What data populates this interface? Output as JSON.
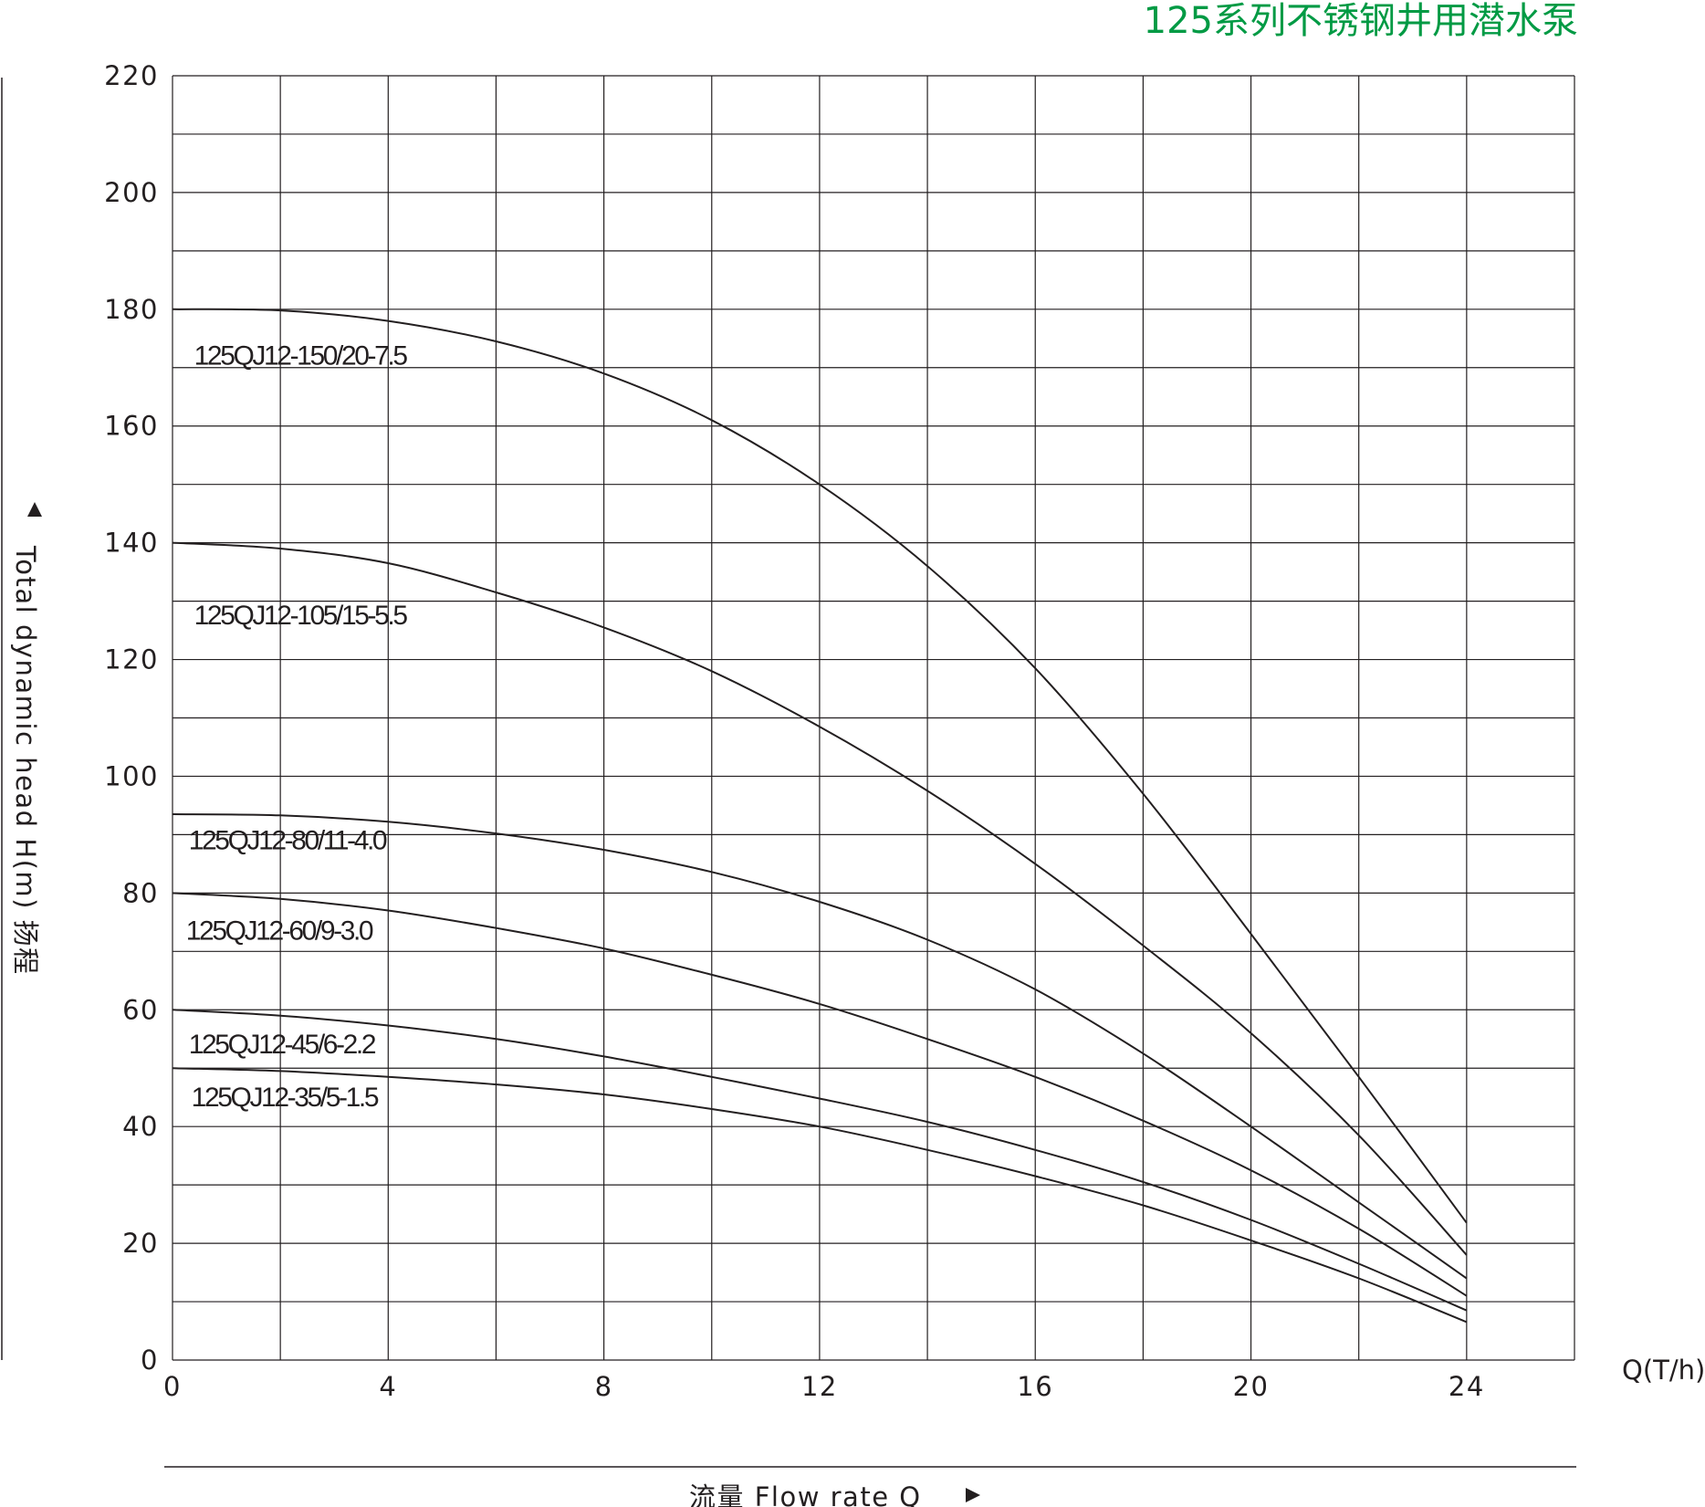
{
  "title": "125系列不锈钢井用潜水泵",
  "chart_data": {
    "type": "line",
    "title": "125系列不锈钢井用潜水泵",
    "xlabel": "流量 Flow rate Q",
    "ylabel": "Total dynamic head H(m) 扬程",
    "x_unit_label": "Q(T/h)",
    "xlim": [
      0,
      26
    ],
    "ylim": [
      0,
      220
    ],
    "x_ticks": [
      "0",
      "4",
      "8",
      "12",
      "16",
      "20",
      "24"
    ],
    "y_ticks": [
      "0",
      "20",
      "40",
      "60",
      "80",
      "100",
      "120",
      "140",
      "160",
      "180",
      "200",
      "220"
    ],
    "grid": true,
    "series": [
      {
        "name": "125QJ12-150/20-7.5",
        "x": [
          0,
          2,
          4,
          6,
          8,
          10,
          12,
          14,
          16,
          18,
          20,
          22,
          24
        ],
        "y": [
          180,
          179.8,
          178,
          174.5,
          169,
          161,
          150,
          136,
          118.5,
          97,
          73,
          48.5,
          23.5
        ]
      },
      {
        "name": "125QJ12-105/15-5.5",
        "x": [
          0,
          2,
          4,
          6,
          8,
          10,
          12,
          14,
          16,
          18,
          20,
          22,
          24
        ],
        "y": [
          140,
          139,
          136.5,
          131.5,
          125.5,
          118,
          108.5,
          97.5,
          85,
          71,
          56,
          38.5,
          18
        ]
      },
      {
        "name": "125QJ12-80/11-4.0",
        "x": [
          0,
          2,
          4,
          6,
          8,
          10,
          12,
          14,
          16,
          18,
          20,
          22,
          24
        ],
        "y": [
          93.5,
          93.3,
          92.2,
          90.2,
          87.4,
          83.6,
          78.5,
          72,
          63.5,
          52.5,
          40,
          27,
          14
        ]
      },
      {
        "name": "125QJ12-60/9-3.0",
        "x": [
          0,
          2,
          4,
          6,
          8,
          10,
          12,
          14,
          16,
          18,
          20,
          22,
          24
        ],
        "y": [
          80,
          79,
          77,
          74,
          70.5,
          66,
          61,
          55,
          48.5,
          41,
          32.5,
          22.5,
          11
        ]
      },
      {
        "name": "125QJ12-45/6-2.2",
        "x": [
          0,
          2,
          4,
          6,
          8,
          10,
          12,
          14,
          16,
          18,
          20,
          22,
          24
        ],
        "y": [
          60,
          59,
          57.3,
          55,
          52,
          48.5,
          44.8,
          40.8,
          36,
          30.5,
          24,
          16.5,
          8.5
        ]
      },
      {
        "name": "125QJ12-35/5-1.5",
        "x": [
          0,
          2,
          4,
          6,
          8,
          10,
          12,
          14,
          16,
          18,
          20,
          22,
          24
        ],
        "y": [
          50,
          49.5,
          48.5,
          47.2,
          45.5,
          43,
          40,
          36,
          31.5,
          26.5,
          20.5,
          14,
          6.5
        ]
      }
    ]
  },
  "series_labels": [
    {
      "text": "125QJ12-150/20-7.5",
      "x": 0.4,
      "y": 170.5
    },
    {
      "text": "125QJ12-105/15-5.5",
      "x": 0.4,
      "y": 126
    },
    {
      "text": "125QJ12-80/11-4.0",
      "x": 0.3,
      "y": 87.5
    },
    {
      "text": "125QJ12-60/9-3.0",
      "x": 0.25,
      "y": 72
    },
    {
      "text": "125QJ12-45/6-2.2",
      "x": 0.3,
      "y": 52.5
    },
    {
      "text": "125QJ12-35/5-1.5",
      "x": 0.35,
      "y": 43.5
    }
  ]
}
